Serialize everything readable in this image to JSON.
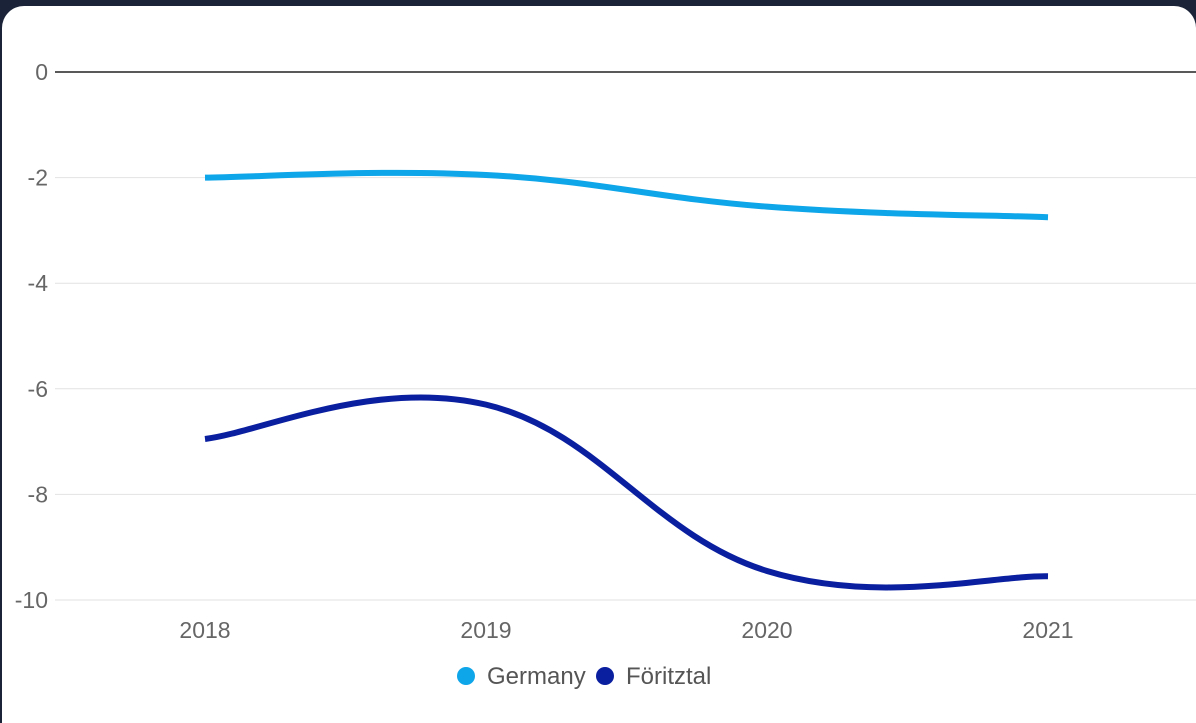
{
  "chart_data": {
    "type": "line",
    "title": "",
    "xlabel": "",
    "ylabel": "",
    "x": [
      "2018",
      "2019",
      "2020",
      "2021"
    ],
    "ylim": [
      -10,
      0
    ],
    "yticks": [
      0,
      -2,
      -4,
      -6,
      -8,
      -10
    ],
    "grid": true,
    "legend_position": "bottom",
    "series": [
      {
        "name": "Germany",
        "values": [
          -2.0,
          -1.95,
          -2.55,
          -2.75
        ],
        "color": "#0ea5e9"
      },
      {
        "name": "Föritztal",
        "values": [
          -6.95,
          -6.3,
          -9.45,
          -9.55
        ],
        "color": "#0a1fa0"
      }
    ]
  }
}
